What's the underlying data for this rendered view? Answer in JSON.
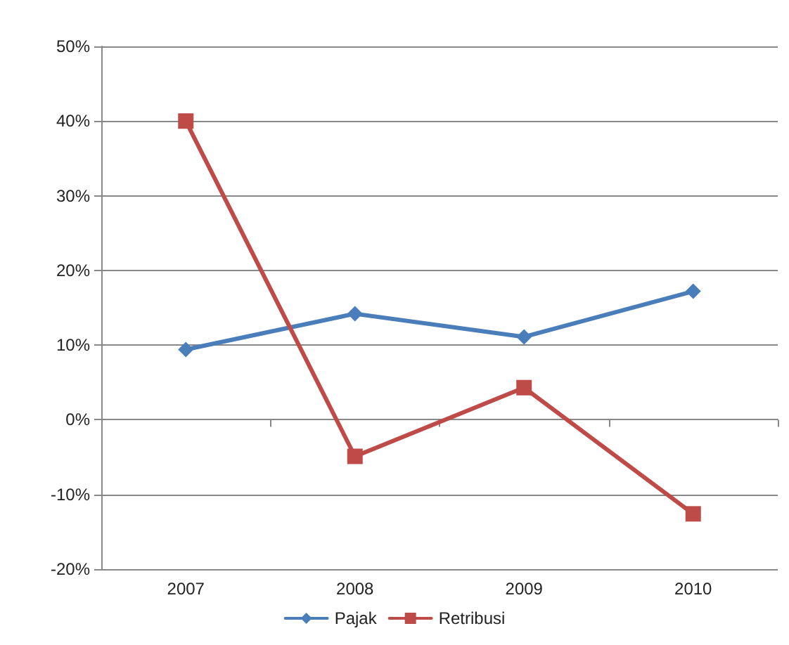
{
  "chart_data": {
    "type": "line",
    "categories": [
      "2007",
      "2008",
      "2009",
      "2010"
    ],
    "series": [
      {
        "name": "Pajak",
        "color": "#4a7ebb",
        "marker": "diamond",
        "values": [
          9.4,
          14.2,
          11.1,
          17.2
        ]
      },
      {
        "name": "Retribusi",
        "color": "#be4b48",
        "marker": "square",
        "values": [
          40,
          -4.9,
          4.3,
          -12.6
        ]
      }
    ],
    "ylim": [
      -20,
      50
    ],
    "yticks": [
      {
        "value": -20,
        "label": "-20%"
      },
      {
        "value": -10,
        "label": "-10%"
      },
      {
        "value": 0,
        "label": "0%"
      },
      {
        "value": 10,
        "label": "10%"
      },
      {
        "value": 20,
        "label": "20%"
      },
      {
        "value": 30,
        "label": "30%"
      },
      {
        "value": 40,
        "label": "40%"
      },
      {
        "value": 50,
        "label": "50%"
      }
    ],
    "grid": "y",
    "legend": "bottom",
    "line_style": "solid"
  }
}
